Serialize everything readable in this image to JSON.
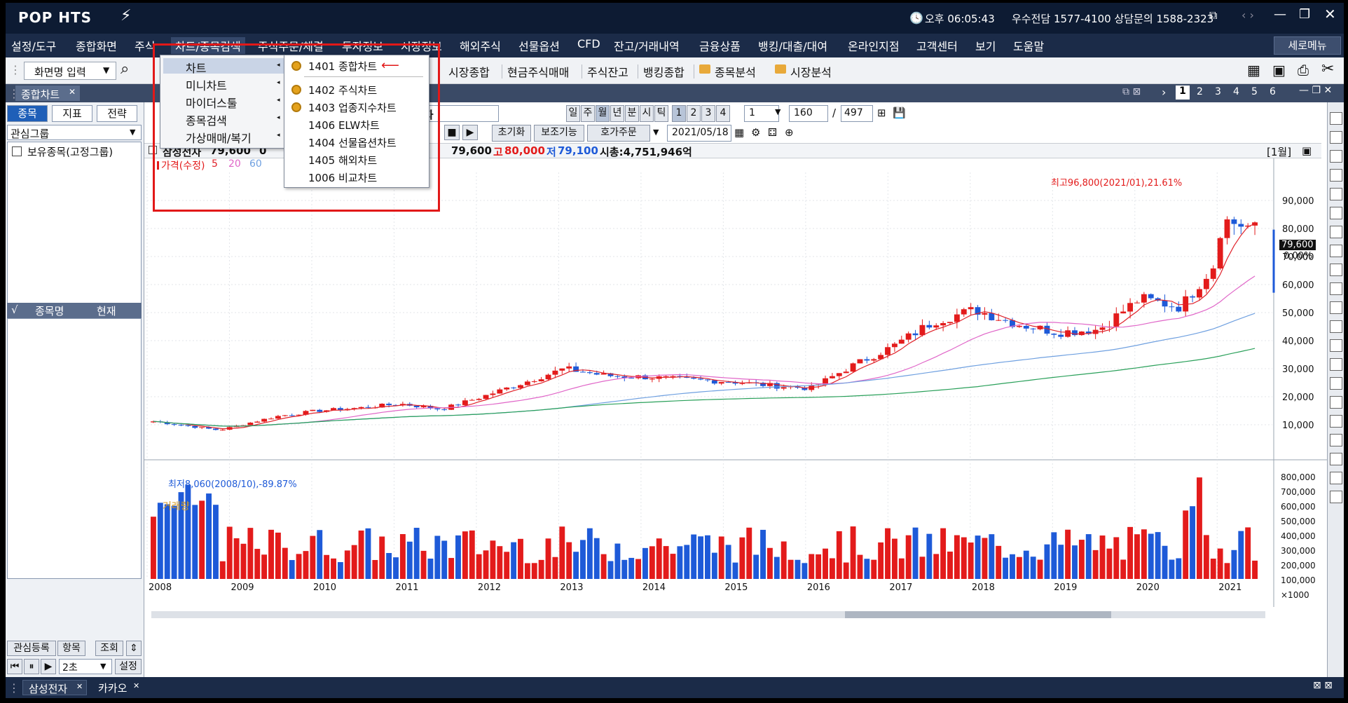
{
  "title_bar": {
    "logo": "POP HTS",
    "time": "오후 06:05:43",
    "phone": "우수전담 1577-4100 상담문의 1588-2323"
  },
  "menu": [
    "설정/도구",
    "종합화면",
    "주식",
    "차트/종목검색",
    "주식주문/체결",
    "투자정보",
    "시장정보",
    "해외주식",
    "선물옵션",
    "CFD",
    "잔고/거래내역",
    "금융상품",
    "뱅킹/대출/대여",
    "온라인지점",
    "고객센터",
    "보기",
    "도움말"
  ],
  "menu_right": "세로메뉴",
  "toolbar": {
    "screen_input": "화면명 입력",
    "links": [
      "시장종합",
      "현금주식매매",
      "주식잔고",
      "뱅킹종합",
      "종목분석",
      "시장분석"
    ]
  },
  "tab": {
    "label": "종합차트",
    "pages": [
      "1",
      "2",
      "3",
      "4",
      "5",
      "6"
    ]
  },
  "left_panel": {
    "tabs": [
      "종목",
      "지표",
      "전략"
    ],
    "group": "관심그룹",
    "checkbox_label": "보유종목(고정그룹)",
    "list_headers": [
      "√",
      "종목명",
      "현재"
    ],
    "bottom_buttons": [
      "관심등록",
      "항목",
      "조회"
    ],
    "interval": "2초",
    "settings_btn": "설정"
  },
  "chart_controls": {
    "stock_name": "전자",
    "periods": [
      "일",
      "주",
      "월",
      "년",
      "분",
      "시",
      "틱"
    ],
    "period_nums": [
      "1",
      "2",
      "3",
      "4"
    ],
    "period_input": "1",
    "count": "160",
    "total": "497",
    "buttons": [
      "초기화",
      "보조기능",
      "호가주문"
    ],
    "date": "2021/05/18"
  },
  "info_row": {
    "name": "삼성전자",
    "price": "79,600",
    "zero": "0",
    "open_val": "79,600",
    "high_label": "고",
    "high_val": "80,000",
    "low_label": "저",
    "low_val": "79,100",
    "cap": "시총:4,751,946억",
    "interval_label": "[1월]"
  },
  "legend": {
    "price": "가격(수정)",
    "ma5": "5",
    "ma20": "20",
    "ma60": "60",
    "volume": "거래량"
  },
  "annotations": {
    "high": "최고96,800(2021/01),21.61%",
    "low": "최저8,060(2008/10),-89.87%",
    "current_price": "79,600",
    "current_pct": "0.00%"
  },
  "price_axis": [
    "90,000",
    "80,000",
    "70,000",
    "60,000",
    "50,000",
    "40,000",
    "30,000",
    "20,000",
    "10,000"
  ],
  "volume_axis": [
    "800,000",
    "700,000",
    "600,000",
    "500,000",
    "400,000",
    "300,000",
    "200,000",
    "100,000",
    "×1000"
  ],
  "years": [
    "2008",
    "2009",
    "2010",
    "2011",
    "2012",
    "2013",
    "2014",
    "2015",
    "2016",
    "2017",
    "2018",
    "2019",
    "2020",
    "2021"
  ],
  "dropdown": {
    "items": [
      "차트",
      "미니차트",
      "마이더스툴",
      "종목검색",
      "가상매매/복기"
    ],
    "sub_items": [
      "1401 종합차트",
      "1402 주식차트",
      "1403 업종지수차트",
      "1406 ELW차트",
      "1404 선물옵션차트",
      "1405 해외차트",
      "1006 비교차트"
    ]
  },
  "bottom_tabs": [
    "삼성전자",
    "카카오"
  ],
  "colors": {
    "up": "#e31b1b",
    "down": "#1e5ad8",
    "ma5": "#e0222a",
    "ma20": "#e066c8",
    "ma60": "#6fa0e0",
    "ma120": "#2aa05a"
  },
  "chart_data": {
    "type": "candlestick",
    "title": "",
    "interval": "monthly",
    "x_range": [
      "2008",
      "2021"
    ],
    "ylim": [
      0,
      100000
    ],
    "close_points": [
      [
        2008.0,
        11200
      ],
      [
        2008.8,
        8060
      ],
      [
        2009.0,
        9500
      ],
      [
        2009.5,
        13000
      ],
      [
        2010.0,
        15000
      ],
      [
        2010.5,
        16000
      ],
      [
        2011.0,
        17500
      ],
      [
        2011.5,
        15500
      ],
      [
        2012.0,
        20000
      ],
      [
        2012.5,
        25000
      ],
      [
        2013.0,
        30000
      ],
      [
        2013.5,
        27500
      ],
      [
        2014.0,
        27000
      ],
      [
        2014.5,
        26000
      ],
      [
        2015.0,
        25500
      ],
      [
        2015.5,
        24000
      ],
      [
        2016.0,
        23000
      ],
      [
        2016.5,
        31000
      ],
      [
        2017.0,
        38000
      ],
      [
        2017.5,
        47000
      ],
      [
        2018.0,
        51000
      ],
      [
        2018.5,
        46000
      ],
      [
        2019.0,
        43000
      ],
      [
        2019.5,
        44000
      ],
      [
        2020.0,
        55000
      ],
      [
        2020.5,
        52000
      ],
      [
        2020.9,
        67000
      ],
      [
        2021.0,
        83000
      ],
      [
        2021.3,
        81000
      ],
      [
        2021.4,
        79600
      ]
    ],
    "volume_range_k": [
      0,
      850000
    ]
  }
}
